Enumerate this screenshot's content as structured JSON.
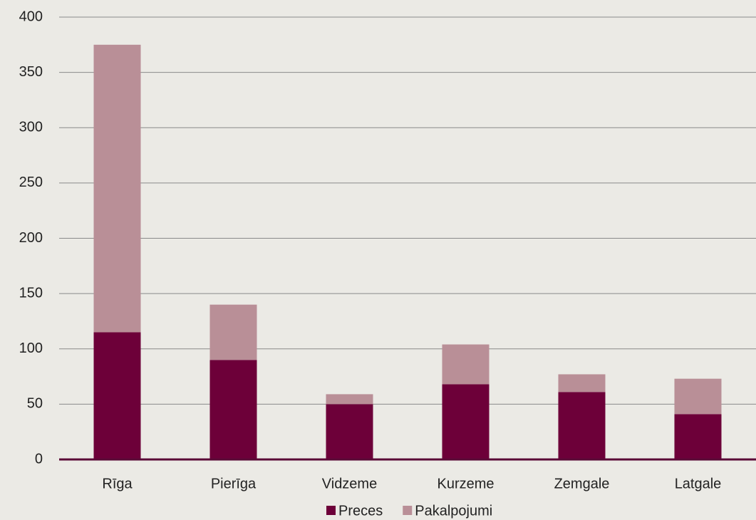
{
  "chart_data": {
    "type": "stacked_bar",
    "categories": [
      "Rīga",
      "Pierīga",
      "Vidzeme",
      "Kurzeme",
      "Zemgale",
      "Latgale"
    ],
    "series": [
      {
        "name": "Preces",
        "color": "#6d0039",
        "values": [
          115,
          90,
          50,
          68,
          61,
          41
        ]
      },
      {
        "name": "Pakalpojumi",
        "color": "#b98f97",
        "values": [
          260,
          50,
          9,
          36,
          16,
          32
        ]
      }
    ],
    "ylim": [
      0,
      400
    ],
    "yticks": [
      0,
      50,
      100,
      150,
      200,
      250,
      300,
      350,
      400
    ],
    "grid": true,
    "legend": "bottom"
  }
}
